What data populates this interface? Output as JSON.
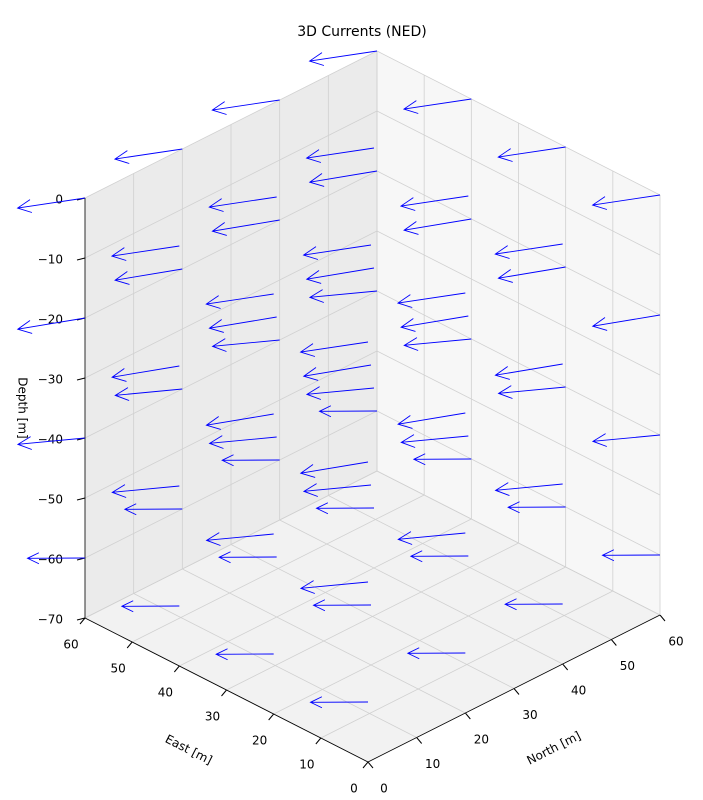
{
  "chart_data": {
    "type": "quiver3d",
    "title": "3D Currents (NED)",
    "xlabel": "North [m]",
    "ylabel": "East [m]",
    "zlabel": "Depth [m]",
    "xlim": [
      0,
      60
    ],
    "ylim": [
      0,
      60
    ],
    "zlim": [
      -70,
      0
    ],
    "xticks": [
      0,
      10,
      20,
      30,
      40,
      50,
      60
    ],
    "yticks": [
      0,
      10,
      20,
      30,
      40,
      50,
      60
    ],
    "zticks": [
      {
        "value": -70,
        "label": "−70"
      },
      {
        "value": -60,
        "label": "−60"
      },
      {
        "value": -50,
        "label": "−50"
      },
      {
        "value": -40,
        "label": "−40"
      },
      {
        "value": -30,
        "label": "−30"
      },
      {
        "value": -20,
        "label": "−20"
      },
      {
        "value": -10,
        "label": "−10"
      },
      0
    ],
    "grid": true,
    "color": "#0000ff",
    "x": [
      0,
      20,
      40,
      60,
      0,
      20,
      40,
      60,
      0,
      20,
      40,
      60,
      0,
      20,
      40,
      60,
      0,
      20,
      40,
      60,
      0,
      20,
      40,
      60,
      0,
      20,
      40,
      60,
      0,
      20,
      40,
      60,
      0,
      20,
      40,
      60,
      0,
      20,
      40,
      60,
      0,
      20,
      40,
      60,
      0,
      20,
      40,
      60,
      0,
      20,
      40,
      60,
      0,
      20,
      40,
      60,
      0,
      20,
      40,
      60,
      0,
      20,
      40,
      60
    ],
    "y": [
      0,
      0,
      0,
      0,
      20,
      20,
      20,
      20,
      40,
      40,
      40,
      40,
      60,
      60,
      60,
      60,
      0,
      0,
      0,
      0,
      20,
      20,
      20,
      20,
      40,
      40,
      40,
      40,
      60,
      60,
      60,
      60,
      0,
      0,
      0,
      0,
      20,
      20,
      20,
      20,
      40,
      40,
      40,
      40,
      60,
      60,
      60,
      60,
      0,
      0,
      0,
      0,
      20,
      20,
      20,
      20,
      40,
      40,
      40,
      40,
      60,
      60,
      60,
      60
    ],
    "z": [
      0,
      0,
      0,
      0,
      0,
      0,
      0,
      0,
      0,
      0,
      0,
      0,
      0,
      0,
      0,
      0,
      -20,
      -20,
      -20,
      -20,
      -20,
      -20,
      -20,
      -20,
      -20,
      -20,
      -20,
      -20,
      -20,
      -20,
      -20,
      -20,
      -40,
      -40,
      -40,
      -40,
      -40,
      -40,
      -40,
      -40,
      -40,
      -40,
      -40,
      -40,
      -40,
      -40,
      -40,
      -40,
      -60,
      -60,
      -60,
      -60,
      -60,
      -60,
      -60,
      -60,
      -60,
      -60,
      -60,
      -60,
      -60,
      -60,
      -60,
      -60
    ],
    "u": [
      -9,
      -9,
      -9,
      -9,
      -9,
      -9,
      -9,
      -9,
      -9,
      -9,
      -9,
      -9,
      -9,
      -9,
      -9,
      -9,
      -8,
      -8,
      -8,
      -8,
      -8,
      -8,
      -8,
      -8,
      -8,
      -8,
      -8,
      -8,
      -8,
      -8,
      -8,
      -8,
      -7,
      -7,
      -7,
      -7,
      -7,
      -7,
      -7,
      -7,
      -7,
      -7,
      -7,
      -7,
      -7,
      -7,
      -7,
      -7,
      -6,
      -6,
      -6,
      -6,
      -6,
      -6,
      -6,
      -6,
      -6,
      -6,
      -6,
      -6,
      -6,
      -6,
      -6,
      -6
    ],
    "v": [
      5,
      5,
      5,
      5,
      5,
      5,
      5,
      5,
      5,
      5,
      5,
      5,
      5,
      5,
      5,
      5,
      6,
      6,
      6,
      6,
      6,
      6,
      6,
      6,
      6,
      6,
      6,
      6,
      6,
      6,
      6,
      6,
      7,
      7,
      7,
      7,
      7,
      7,
      7,
      7,
      7,
      7,
      7,
      7,
      7,
      7,
      7,
      7,
      6,
      6,
      6,
      6,
      6,
      6,
      6,
      6,
      6,
      6,
      6,
      6,
      6,
      6,
      6,
      6
    ],
    "w": [
      0,
      0,
      0,
      0,
      0,
      0,
      0,
      0,
      0,
      0,
      0,
      0,
      0,
      0,
      0,
      0,
      1,
      1,
      1,
      1,
      1,
      1,
      1,
      1,
      1,
      1,
      1,
      1,
      1,
      1,
      1,
      1,
      1,
      1,
      1,
      1,
      1,
      1,
      1,
      1,
      1,
      1,
      1,
      1,
      1,
      1,
      1,
      1,
      0,
      0,
      0,
      0,
      0,
      0,
      0,
      0,
      0,
      0,
      0,
      0,
      0,
      0,
      0,
      0
    ]
  }
}
